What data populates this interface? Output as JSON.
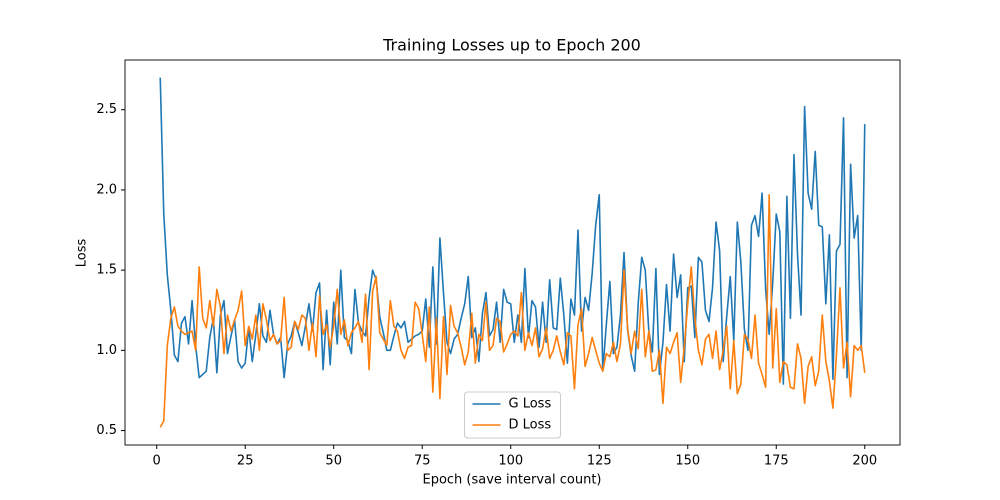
{
  "chart_data": {
    "type": "line",
    "title": "Training Losses up to Epoch 200",
    "x_label": "Epoch (save interval count)",
    "y_label": "Loss",
    "x": [
      1,
      2,
      3,
      4,
      5,
      6,
      7,
      8,
      9,
      10,
      11,
      12,
      13,
      14,
      15,
      16,
      17,
      18,
      19,
      20,
      21,
      22,
      23,
      24,
      25,
      26,
      27,
      28,
      29,
      30,
      31,
      32,
      33,
      34,
      35,
      36,
      37,
      38,
      39,
      40,
      41,
      42,
      43,
      44,
      45,
      46,
      47,
      48,
      49,
      50,
      51,
      52,
      53,
      54,
      55,
      56,
      57,
      58,
      59,
      60,
      61,
      62,
      63,
      64,
      65,
      66,
      67,
      68,
      69,
      70,
      71,
      72,
      73,
      74,
      75,
      76,
      77,
      78,
      79,
      80,
      81,
      82,
      83,
      84,
      85,
      86,
      87,
      88,
      89,
      90,
      91,
      92,
      93,
      94,
      95,
      96,
      97,
      98,
      99,
      100,
      101,
      102,
      103,
      104,
      105,
      106,
      107,
      108,
      109,
      110,
      111,
      112,
      113,
      114,
      115,
      116,
      117,
      118,
      119,
      120,
      121,
      122,
      123,
      124,
      125,
      126,
      127,
      128,
      129,
      130,
      131,
      132,
      133,
      134,
      135,
      136,
      137,
      138,
      139,
      140,
      141,
      142,
      143,
      144,
      145,
      146,
      147,
      148,
      149,
      150,
      151,
      152,
      153,
      154,
      155,
      156,
      157,
      158,
      159,
      160,
      161,
      162,
      163,
      164,
      165,
      166,
      167,
      168,
      169,
      170,
      171,
      172,
      173,
      174,
      175,
      176,
      177,
      178,
      179,
      180,
      181,
      182,
      183,
      184,
      185,
      186,
      187,
      188,
      189,
      190,
      191,
      192,
      193,
      194,
      195,
      196,
      197,
      198,
      199,
      200
    ],
    "series": [
      {
        "name": "G Loss",
        "color": "#1f77b4",
        "values": [
          2.7,
          1.85,
          1.47,
          1.25,
          0.97,
          0.93,
          1.17,
          1.21,
          1.04,
          1.31,
          1.03,
          0.83,
          0.85,
          0.87,
          1.08,
          1.2,
          0.86,
          1.22,
          1.31,
          0.98,
          1.09,
          1.19,
          0.93,
          0.89,
          0.92,
          1.14,
          0.93,
          1.1,
          1.29,
          1.09,
          1.05,
          1.25,
          1.1,
          1.04,
          1.08,
          0.83,
          1.04,
          1.09,
          1.18,
          1.11,
          1.03,
          1.15,
          1.29,
          1.12,
          1.36,
          1.42,
          0.88,
          1.25,
          0.91,
          1.3,
          1.04,
          1.5,
          1.08,
          1.06,
          0.98,
          1.38,
          1.17,
          1.12,
          1.09,
          1.33,
          1.5,
          1.44,
          1.21,
          1.11,
          1.0,
          1.0,
          1.09,
          1.17,
          1.14,
          1.18,
          1.05,
          1.07,
          1.09,
          1.1,
          1.12,
          1.32,
          1.02,
          1.52,
          1.04,
          1.7,
          1.36,
          1.05,
          0.98,
          1.07,
          1.1,
          1.2,
          1.29,
          1.46,
          1.08,
          1.14,
          0.93,
          1.23,
          1.36,
          1.09,
          1.13,
          1.3,
          1.05,
          1.38,
          1.3,
          1.29,
          1.05,
          1.22,
          1.05,
          1.51,
          1.08,
          1.31,
          1.27,
          1.02,
          1.3,
          1.05,
          1.44,
          1.14,
          1.13,
          1.45,
          1.22,
          0.92,
          1.32,
          1.22,
          1.75,
          1.12,
          1.33,
          1.25,
          1.48,
          1.78,
          1.97,
          0.87,
          1.16,
          1.43,
          0.98,
          1.02,
          1.22,
          1.61,
          1.13,
          0.97,
          0.87,
          1.29,
          1.58,
          1.5,
          1.12,
          0.99,
          1.51,
          0.85,
          1.05,
          1.41,
          1.12,
          1.6,
          1.33,
          1.47,
          0.93,
          1.39,
          1.4,
          1.08,
          1.58,
          1.55,
          1.25,
          1.18,
          1.39,
          1.8,
          1.62,
          0.93,
          1.21,
          1.46,
          1.06,
          1.8,
          1.55,
          1.13,
          1.0,
          1.78,
          1.84,
          1.71,
          1.98,
          1.38,
          1.1,
          1.42,
          1.85,
          1.74,
          0.79,
          1.96,
          1.2,
          2.22,
          1.6,
          1.22,
          2.52,
          1.98,
          1.88,
          2.24,
          1.78,
          1.77,
          1.29,
          1.72,
          0.82,
          1.62,
          1.66,
          2.45,
          0.83,
          2.16,
          1.7,
          1.84,
          1.0,
          2.41
        ]
      },
      {
        "name": "D Loss",
        "color": "#ff7f0e",
        "values": [
          0.52,
          0.56,
          1.03,
          1.2,
          1.27,
          1.15,
          1.12,
          1.1,
          1.11,
          1.12,
          1.0,
          1.52,
          1.2,
          1.14,
          1.31,
          1.15,
          1.38,
          1.27,
          0.98,
          1.22,
          1.12,
          1.19,
          1.25,
          1.37,
          1.03,
          1.15,
          1.07,
          1.22,
          1.0,
          1.29,
          1.19,
          1.06,
          1.1,
          1.04,
          1.06,
          1.33,
          1.0,
          1.02,
          1.18,
          1.13,
          1.22,
          1.2,
          1.0,
          1.17,
          0.96,
          1.34,
          1.1,
          1.16,
          1.02,
          1.15,
          1.38,
          1.1,
          1.19,
          1.03,
          1.11,
          1.14,
          1.18,
          1.05,
          1.35,
          0.88,
          1.37,
          1.46,
          1.11,
          1.07,
          1.03,
          1.31,
          1.15,
          1.12,
          1.0,
          0.95,
          1.02,
          1.03,
          1.3,
          1.26,
          1.1,
          0.93,
          1.27,
          0.74,
          1.2,
          0.7,
          1.21,
          0.85,
          1.28,
          1.15,
          1.11,
          1.02,
          0.91,
          0.99,
          1.23,
          0.92,
          1.1,
          1.06,
          1.3,
          1.0,
          1.03,
          1.2,
          1.18,
          0.99,
          1.04,
          1.1,
          1.12,
          1.09,
          1.36,
          1.0,
          1.11,
          1.03,
          1.14,
          0.96,
          1.01,
          1.14,
          0.95,
          1.0,
          1.09,
          0.99,
          0.91,
          1.11,
          1.09,
          0.76,
          1.16,
          1.26,
          0.9,
          0.98,
          1.08,
          1.0,
          0.92,
          0.87,
          0.98,
          0.96,
          1.05,
          0.93,
          1.04,
          1.5,
          1.14,
          0.98,
          1.12,
          1.01,
          1.38,
          0.96,
          1.12,
          0.87,
          0.88,
          1.0,
          0.67,
          1.02,
          0.98,
          1.05,
          1.11,
          0.8,
          1.02,
          1.29,
          1.52,
          1.2,
          1.0,
          0.91,
          1.07,
          1.1,
          0.95,
          1.12,
          0.88,
          1.0,
          1.15,
          0.76,
          1.06,
          0.73,
          0.79,
          1.1,
          1.07,
          0.95,
          1.22,
          0.92,
          0.85,
          0.77,
          1.97,
          0.89,
          1.26,
          0.8,
          0.93,
          0.91,
          0.77,
          0.76,
          1.04,
          0.95,
          0.67,
          0.9,
          0.96,
          0.78,
          0.87,
          1.22,
          0.93,
          0.81,
          0.64,
          0.97,
          1.39,
          0.89,
          1.05,
          0.71,
          1.03,
          1.0,
          1.03,
          0.86
        ]
      }
    ],
    "xlim": [
      -8.95,
      209.95
    ],
    "xticks": [
      0,
      25,
      50,
      75,
      100,
      125,
      150,
      175,
      200
    ],
    "ylim": [
      0.41,
      2.81
    ],
    "yticks": [
      0.5,
      {
        "value": 1.0,
        "label": "1.0"
      },
      1.5,
      {
        "value": 2.0,
        "label": "2.0"
      },
      2.5
    ],
    "grid": false,
    "legend": "lower center"
  }
}
